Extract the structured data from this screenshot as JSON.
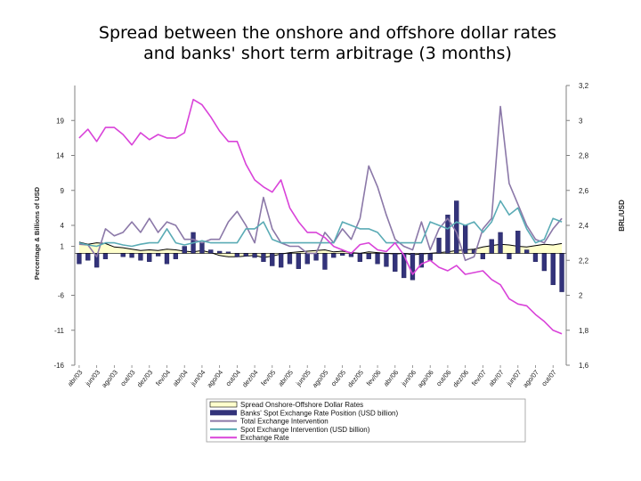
{
  "slide": {
    "title_line1": "Spread between the onshore and offshore dollar rates",
    "title_line2": "and banks' short term arbitrage (3 months)"
  },
  "chart_data": {
    "type": "line",
    "title": "Spread between the onshore and offshore dollar rates and banks' short term arbitrage (3 months)",
    "xlabel": "",
    "ylabel": "Percentage & Billions of USD",
    "y2label": "BRL/USD",
    "ylim": [
      -16,
      24
    ],
    "y2lim": [
      1.6,
      3.2
    ],
    "yticks": [
      "19",
      "14",
      "9",
      "4",
      "1",
      "-6",
      "-11",
      "-16"
    ],
    "y2ticks": [
      "3,2",
      "3",
      "2,8",
      "2,6",
      "2,4",
      "2,2",
      "2",
      "1,8",
      "1,6"
    ],
    "x_tick_labels": [
      "abr/03",
      "jun/03",
      "ago/03",
      "out/03",
      "dez/03",
      "fev/04",
      "abr/04",
      "jun/04",
      "ago/04",
      "out/04",
      "dez/04",
      "fev/05",
      "abr/05",
      "jun/05",
      "ago/05",
      "out/05",
      "dez/05",
      "fev/06",
      "abr/06",
      "jun/06",
      "ago/06",
      "out/06",
      "dez/06",
      "fev/07",
      "abr/07",
      "jun/07",
      "ago/07",
      "out/07"
    ],
    "n_points": 56,
    "series": [
      {
        "name": "Spread Onshore-Offshore Dollar Rates",
        "type": "area",
        "color": "#000000",
        "fill": "#ffffcc",
        "axis": "left",
        "values": [
          1.6,
          1.3,
          1.5,
          1.4,
          0.9,
          0.8,
          0.6,
          0.4,
          0.5,
          0.4,
          0.6,
          0.5,
          0.3,
          0.2,
          0.4,
          0.1,
          -0.3,
          -0.5,
          -0.5,
          -0.4,
          -0.3,
          -0.6,
          -0.4,
          -0.1,
          0.1,
          0.2,
          0.3,
          0.4,
          0.5,
          0.2,
          0.3,
          0.1,
          0.0,
          0.2,
          0.1,
          0.0,
          -0.1,
          0.0,
          -0.2,
          -0.1,
          0.0,
          0.1,
          0.2,
          0.4,
          0.5,
          0.6,
          0.9,
          1.1,
          1.3,
          1.2,
          1.0,
          0.9,
          1.1,
          1.3,
          1.2,
          1.4
        ]
      },
      {
        "name": "Banks' Spot Exchange Rate Position (USD billion)",
        "type": "bar",
        "color": "#33337a",
        "axis": "left",
        "values": [
          -1.5,
          -1.0,
          -2.0,
          -0.8,
          0.0,
          -0.5,
          -0.6,
          -1.0,
          -1.2,
          -0.4,
          -1.5,
          -0.8,
          1.0,
          3.0,
          1.5,
          0.5,
          0.3,
          0.2,
          -0.5,
          -0.4,
          -0.6,
          -1.2,
          -1.8,
          -2.0,
          -1.5,
          -2.2,
          -1.5,
          -1.0,
          -2.3,
          -0.6,
          -0.3,
          -0.5,
          -1.2,
          -0.8,
          -1.5,
          -1.9,
          -2.6,
          -3.5,
          -3.8,
          -2.0,
          -1.0,
          2.2,
          5.5,
          7.5,
          4.0,
          0.5,
          -0.8,
          2.0,
          3.0,
          -0.8,
          3.2,
          0.5,
          -1.2,
          -2.5,
          -4.5,
          -5.5
        ]
      },
      {
        "name": "Total Exchange Intervention",
        "type": "line",
        "color": "#8b78a8",
        "axis": "left",
        "values": [
          1.3,
          1.2,
          -0.5,
          3.5,
          2.5,
          3.0,
          4.5,
          3.0,
          5.0,
          3.0,
          4.5,
          4.0,
          2.0,
          2.0,
          1.5,
          2.0,
          2.0,
          4.5,
          6.0,
          4.0,
          1.5,
          8.0,
          3.5,
          1.5,
          1.0,
          1.0,
          0.0,
          0.0,
          3.0,
          1.5,
          3.5,
          2.0,
          5.0,
          12.5,
          9.5,
          5.5,
          2.0,
          1.0,
          0.5,
          4.5,
          0.5,
          3.5,
          5.0,
          3.0,
          -1.0,
          -0.5,
          3.5,
          5.0,
          21.0,
          10.0,
          7.0,
          4.0,
          2.0,
          1.5,
          3.5,
          5.0
        ]
      },
      {
        "name": "Spot Exchange Intervention (USD billion)",
        "type": "line",
        "color": "#5aabb5",
        "axis": "left",
        "values": [
          1.5,
          1.2,
          1.0,
          1.5,
          1.5,
          1.2,
          1.0,
          1.3,
          1.5,
          1.5,
          3.5,
          1.5,
          1.2,
          1.5,
          1.8,
          1.5,
          1.5,
          1.5,
          1.5,
          3.5,
          3.5,
          4.5,
          2.0,
          1.5,
          1.5,
          1.5,
          1.5,
          1.5,
          1.5,
          1.5,
          4.5,
          4.0,
          3.5,
          3.5,
          3.0,
          1.5,
          1.5,
          1.5,
          1.5,
          1.5,
          4.5,
          4.0,
          3.5,
          4.5,
          4.0,
          4.5,
          3.0,
          4.5,
          7.5,
          5.5,
          6.5,
          3.5,
          1.5,
          2.0,
          5.0,
          4.5
        ]
      },
      {
        "name": "Exchange Rate",
        "type": "line",
        "color": "#d943d9",
        "axis": "right",
        "values": [
          2.9,
          2.95,
          2.88,
          2.96,
          2.96,
          2.92,
          2.86,
          2.93,
          2.89,
          2.92,
          2.9,
          2.9,
          2.93,
          3.12,
          3.09,
          3.02,
          2.94,
          2.88,
          2.88,
          2.75,
          2.66,
          2.62,
          2.59,
          2.66,
          2.5,
          2.42,
          2.36,
          2.36,
          2.33,
          2.28,
          2.26,
          2.24,
          2.29,
          2.3,
          2.26,
          2.25,
          2.3,
          2.23,
          2.12,
          2.18,
          2.2,
          2.16,
          2.14,
          2.17,
          2.12,
          2.13,
          2.14,
          2.09,
          2.06,
          1.98,
          1.95,
          1.94,
          1.89,
          1.85,
          1.8,
          1.78
        ]
      }
    ],
    "legend_position": "bottom"
  }
}
